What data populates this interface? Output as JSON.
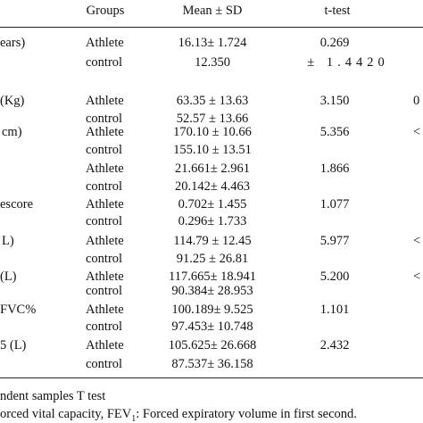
{
  "table": {
    "headers": [
      "Groups",
      "Mean ± SD",
      "t-test"
    ],
    "rows": [
      {
        "label": "ears)",
        "group": "Athlete",
        "mean_sd": "16.13± 1.724",
        "t": "0.269"
      },
      {
        "group": "control",
        "mean_sd": "12.350",
        "t": "± 1.4420"
      },
      {
        "label": "(Kg)",
        "group": "Athlete",
        "mean_sd": "63.35 ± 13.63",
        "t": "3.150",
        "p": "0"
      },
      {
        "group": "control",
        "mean_sd": "52.57 ± 13.66"
      },
      {
        "label": "cm)",
        "group": "Athlete",
        "mean_sd": "170.10 ± 10.66",
        "t": "5.356",
        "p": "<"
      },
      {
        "group": "control",
        "mean_sd": "155.10 ± 13.51"
      },
      {
        "group": "Athlete",
        "mean_sd": "21.661± 2.961",
        "t": "1.866"
      },
      {
        "group": "control",
        "mean_sd": "20.142± 4.463"
      },
      {
        "label": "escore",
        "group": "Athlete",
        "mean_sd": "0.702± 1.455",
        "t": "1.077"
      },
      {
        "group": "control",
        "mean_sd": "0.296± 1.733"
      },
      {
        "label": "L)",
        "group": "Athlete",
        "mean_sd": "114.79 ± 12.45",
        "t": "5.977",
        "p": "<"
      },
      {
        "group": "control",
        "mean_sd": "91.25 ± 26.81"
      },
      {
        "label": "(L)",
        "group": "Athlete",
        "mean_sd": "117.665± 18.941",
        "t": "5.200",
        "p": "<"
      },
      {
        "group": "control",
        "mean_sd": "90.384± 28.953"
      },
      {
        "label": "FVC%",
        "group": "Athlete",
        "mean_sd": "100.189± 9.525",
        "t": "1.101"
      },
      {
        "group": "control",
        "mean_sd": "97.453± 10.748"
      },
      {
        "label": "5 (L)",
        "group": "Athlete",
        "mean_sd": "105.625± 26.668",
        "t": "2.432"
      },
      {
        "group": "control",
        "mean_sd": "87.537± 36.158"
      }
    ]
  },
  "footnotes": [
    [
      "ndent samples T test"
    ],
    [
      "orced vital capacity, FEV",
      "1",
      ": Forced expiratory volume in first second."
    ]
  ]
}
